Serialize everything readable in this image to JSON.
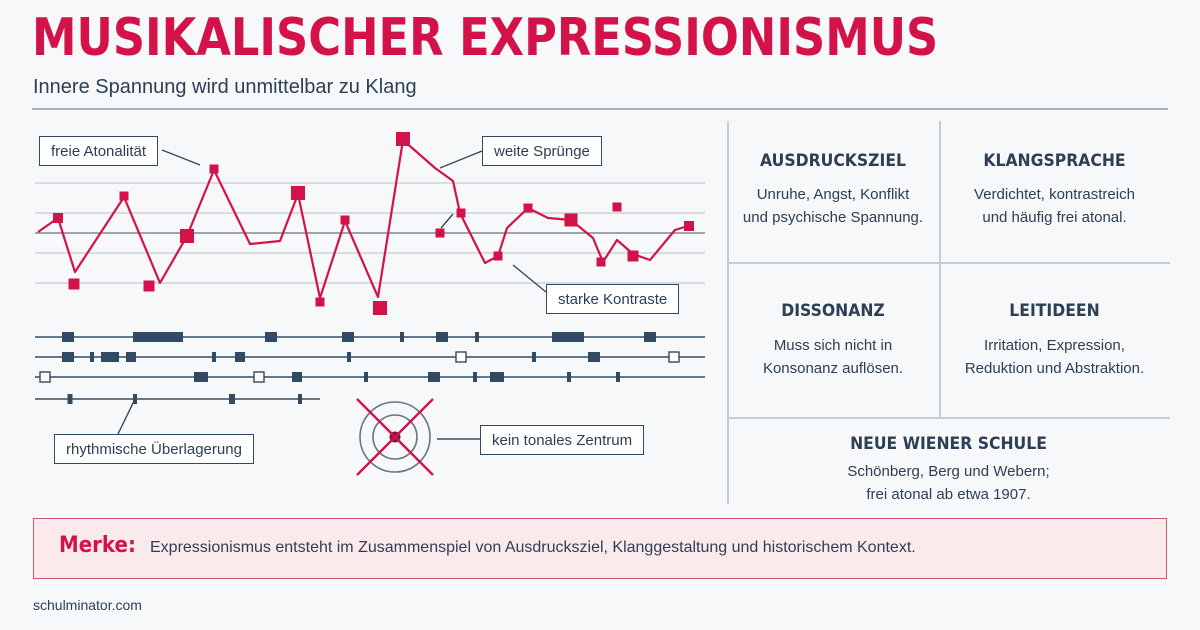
{
  "header": {
    "title": "MUSIKALISCHER EXPRESSIONISMUS",
    "subtitle": "Innere Spannung wird unmittelbar zu Klang"
  },
  "colors": {
    "accent": "#d4124a",
    "text": "#2d3e55",
    "rule": "#a9b3c0",
    "merke_bg": "#fbeaec"
  },
  "diagram": {
    "callouts": {
      "atonality": "freie Atonalität",
      "leaps": "weite Sprünge",
      "contrasts": "starke Kontraste",
      "rhythm": "rhythmische Überlagerung",
      "center": "kein tonales Zentrum"
    }
  },
  "panel": {
    "cells": [
      {
        "title": "AUSDRUCKSZIEL",
        "text_1": "Unruhe, Angst, Konflikt",
        "text_2": "und psychische Spannung."
      },
      {
        "title": "KLANGSPRACHE",
        "text_1": "Verdichtet, kontrastreich",
        "text_2": "und häufig frei atonal."
      },
      {
        "title": "DISSONANZ",
        "text_1": "Muss sich nicht in",
        "text_2": "Konsonanz auflösen."
      },
      {
        "title": "LEITIDEEN",
        "text_1": "Irritation, Expression,",
        "text_2": "Reduktion und Abstraktion."
      },
      {
        "title": "NEUE WIENER SCHULE",
        "text_1": "Schönberg, Berg und Webern;",
        "text_2": "frei atonal ab etwa 1907."
      }
    ]
  },
  "merke": {
    "label": "Merke:",
    "text": "Expressionismus entsteht im Zusammenspiel von Ausdrucksziel, Klanggestaltung und historischem Kontext."
  },
  "footer": {
    "source": "schulminator.com"
  }
}
